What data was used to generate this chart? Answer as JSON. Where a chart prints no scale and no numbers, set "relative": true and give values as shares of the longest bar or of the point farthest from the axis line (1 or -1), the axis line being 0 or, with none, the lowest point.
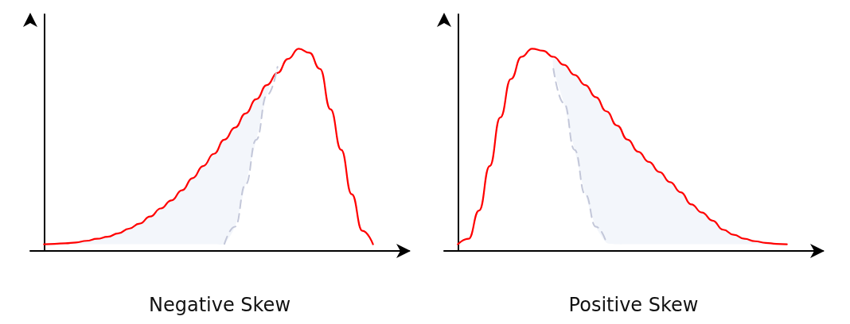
{
  "chart_data": [
    {
      "type": "line",
      "relative": true,
      "xlabel": "Negative Skew",
      "marker": "none",
      "grid": false,
      "categories": [
        null,
        null,
        null,
        null,
        null,
        null,
        null,
        null,
        null,
        null,
        null,
        null,
        null,
        null,
        null,
        null,
        null,
        null,
        null,
        null,
        null,
        null,
        null,
        null,
        null,
        null,
        null,
        null,
        null,
        null,
        null,
        null
      ],
      "series": [
        {
          "color": "#ff0000",
          "line_style": "solid",
          "values": [
            0.033,
            0.035,
            0.038,
            0.042,
            0.05,
            0.06,
            0.07,
            0.087,
            0.11,
            0.135,
            0.17,
            0.21,
            0.25,
            0.3,
            0.36,
            0.42,
            0.48,
            0.55,
            0.61,
            0.68,
            0.75,
            0.82,
            0.88,
            0.95,
            1.0,
            0.98,
            0.9,
            0.7,
            0.5,
            0.28,
            0.1,
            0.033
          ],
          "lower": [
            0.033,
            0.033,
            0.033,
            0.033,
            0.033,
            0.033,
            0.033,
            0.033,
            0.033,
            0.033,
            0.033,
            0.033,
            0.033,
            0.033,
            0.033,
            0.033,
            0.033,
            0.035,
            0.12,
            0.33,
            0.55,
            0.77,
            0.91,
            null,
            null,
            null,
            null,
            null,
            null,
            null,
            null,
            null
          ],
          "upper": [
            0.033,
            0.035,
            0.038,
            0.042,
            0.05,
            0.06,
            0.07,
            0.087,
            0.11,
            0.135,
            0.17,
            0.21,
            0.25,
            0.3,
            0.36,
            0.42,
            0.48,
            0.55,
            0.61,
            0.68,
            0.75,
            0.82,
            0.88,
            null,
            null,
            null,
            null,
            null,
            null,
            null,
            null,
            null
          ]
        },
        {
          "color": "#c3c7d9",
          "line_style": "dashed",
          "values": [
            null,
            null,
            null,
            null,
            null,
            null,
            null,
            null,
            null,
            null,
            null,
            null,
            null,
            null,
            null,
            null,
            null,
            0.035,
            0.12,
            0.33,
            0.55,
            0.77,
            0.91,
            null,
            null,
            null,
            null,
            null,
            null,
            null,
            null,
            null
          ]
        }
      ]
    },
    {
      "type": "line",
      "relative": true,
      "xlabel": "Positive Skew",
      "marker": "none",
      "grid": false,
      "categories": [
        null,
        null,
        null,
        null,
        null,
        null,
        null,
        null,
        null,
        null,
        null,
        null,
        null,
        null,
        null,
        null,
        null,
        null,
        null,
        null,
        null,
        null,
        null,
        null,
        null,
        null,
        null,
        null,
        null,
        null,
        null,
        null
      ],
      "series": [
        {
          "color": "#ff0000",
          "line_style": "solid",
          "values": [
            0.033,
            0.06,
            0.2,
            0.42,
            0.66,
            0.85,
            0.96,
            1.0,
            0.99,
            0.96,
            0.92,
            0.87,
            0.82,
            0.76,
            0.69,
            0.62,
            0.55,
            0.49,
            0.44,
            0.39,
            0.34,
            0.29,
            0.23,
            0.19,
            0.15,
            0.105,
            0.08,
            0.06,
            0.048,
            0.04,
            0.035,
            0.033
          ],
          "lower": [
            null,
            null,
            null,
            null,
            null,
            null,
            null,
            null,
            null,
            0.9,
            0.73,
            0.5,
            0.28,
            0.12,
            0.04,
            0.033,
            0.033,
            0.033,
            0.033,
            0.033,
            0.033,
            0.033,
            0.033,
            0.033,
            0.033,
            0.033,
            0.033,
            0.033,
            0.033,
            0.033,
            0.033,
            0.033
          ],
          "upper": [
            null,
            null,
            null,
            null,
            null,
            null,
            null,
            null,
            null,
            0.96,
            0.92,
            0.87,
            0.82,
            0.76,
            0.69,
            0.62,
            0.55,
            0.49,
            0.44,
            0.39,
            0.34,
            0.29,
            0.23,
            0.19,
            0.15,
            0.105,
            0.08,
            0.06,
            0.048,
            0.04,
            0.035,
            0.033
          ]
        },
        {
          "color": "#c3c7d9",
          "line_style": "dashed",
          "values": [
            null,
            null,
            null,
            null,
            null,
            null,
            null,
            null,
            null,
            0.9,
            0.73,
            0.5,
            0.28,
            0.12,
            0.04,
            null,
            null,
            null,
            null,
            null,
            null,
            null,
            null,
            null,
            null,
            null,
            null,
            null,
            null,
            null,
            null,
            null
          ]
        }
      ]
    }
  ]
}
